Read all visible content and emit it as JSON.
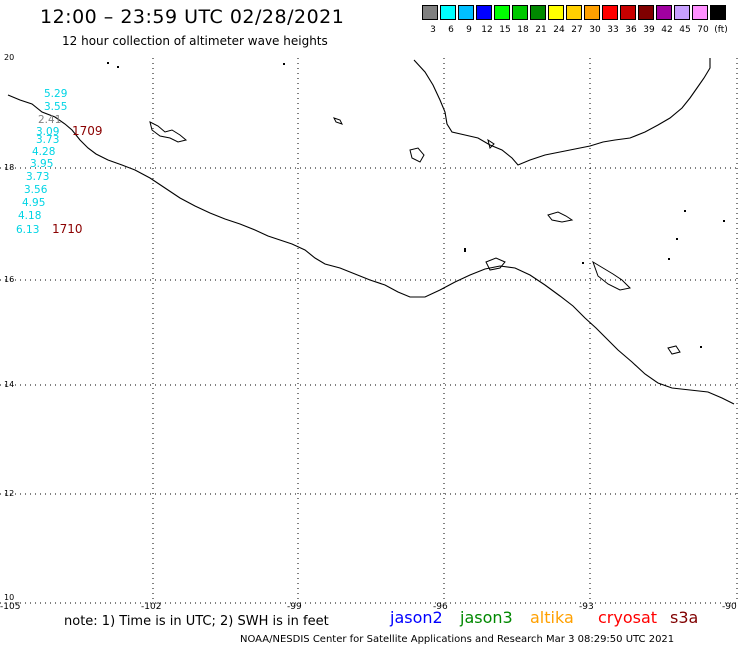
{
  "title": "12:00 – 23:59 UTC 02/28/2021",
  "subtitle": "12 hour collection of altimeter wave heights",
  "legend": {
    "colors": [
      "#808080",
      "#00ffff",
      "#00bfff",
      "#0000ff",
      "#00ff00",
      "#00c800",
      "#008800",
      "#ffff00",
      "#ffd000",
      "#ffa000",
      "#ff0000",
      "#c80000",
      "#800000",
      "#a000a0",
      "#c8a0ff",
      "#ff90ff",
      "#000000"
    ],
    "labels": [
      "3",
      "6",
      "9",
      "12",
      "15",
      "18",
      "21",
      "24",
      "27",
      "30",
      "33",
      "36",
      "39",
      "42",
      "45",
      "70",
      "(ft)"
    ]
  },
  "axes": {
    "lat_labels": [
      "20",
      "18",
      "16",
      "14",
      "12",
      "10"
    ],
    "lon_labels": [
      "-105",
      "-102",
      "-99",
      "-96",
      "-93",
      "-90"
    ]
  },
  "observations": [
    {
      "value": "5.29",
      "color": "#00d4e4"
    },
    {
      "value": "3.55",
      "color": "#00d4e4"
    },
    {
      "value": "2.41",
      "color": "#808080"
    },
    {
      "value": "3.09",
      "color": "#00d4e4"
    },
    {
      "value": "3.73",
      "color": "#00d4e4"
    },
    {
      "value": "4.28",
      "color": "#00d4e4"
    },
    {
      "value": "3.95",
      "color": "#00d4e4"
    },
    {
      "value": "3.73",
      "color": "#00d4e4"
    },
    {
      "value": "3.56",
      "color": "#00d4e4"
    },
    {
      "value": "4.95",
      "color": "#00d4e4"
    },
    {
      "value": "4.18",
      "color": "#00d4e4"
    },
    {
      "value": "6.13",
      "color": "#00d4e4"
    }
  ],
  "pass_times": [
    "1709",
    "1710"
  ],
  "note": "note: 1) Time is in UTC; 2) SWH is in feet",
  "satellites": [
    {
      "name": "jason2",
      "color": "#0000ff"
    },
    {
      "name": "jason3",
      "color": "#008800"
    },
    {
      "name": "altika",
      "color": "#ffa000"
    },
    {
      "name": "cryosat",
      "color": "#ff0000"
    },
    {
      "name": "s3a",
      "color": "#800000"
    }
  ],
  "credit": "NOAA/NESDIS Center for Satellite Applications and Research    Mar  3 08:29:50 UTC 2021"
}
